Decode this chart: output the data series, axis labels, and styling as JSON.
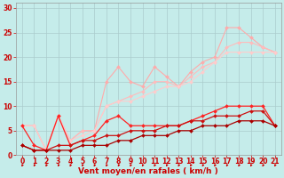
{
  "background_color": "#c5ecea",
  "grid_color": "#aacccc",
  "xlabel": "Vent moyen/en rafales ( km/h )",
  "xlim": [
    -0.5,
    21.5
  ],
  "ylim": [
    0,
    31
  ],
  "xticks": [
    0,
    1,
    2,
    3,
    4,
    5,
    6,
    7,
    8,
    9,
    10,
    11,
    12,
    13,
    14,
    15,
    16,
    17,
    18,
    19,
    20,
    21
  ],
  "yticks": [
    0,
    5,
    10,
    15,
    20,
    25,
    30
  ],
  "series": [
    {
      "x": [
        0,
        1,
        2,
        3,
        4,
        5,
        6,
        7,
        8,
        9,
        10,
        11,
        12,
        13,
        14,
        15,
        16,
        17,
        18,
        19,
        20,
        21
      ],
      "y": [
        6,
        6,
        1,
        8,
        3,
        5,
        5,
        15,
        18,
        15,
        14,
        18,
        16,
        14,
        17,
        19,
        20,
        26,
        26,
        24,
        22,
        21
      ],
      "color": "#ffaaaa",
      "linewidth": 0.8,
      "markersize": 2.0
    },
    {
      "x": [
        0,
        1,
        2,
        3,
        4,
        5,
        6,
        7,
        8,
        9,
        10,
        11,
        12,
        13,
        14,
        15,
        16,
        17,
        18,
        19,
        20,
        21
      ],
      "y": [
        6,
        6,
        1,
        8,
        3,
        5,
        5,
        10,
        11,
        12,
        13,
        15,
        15,
        14,
        16,
        18,
        19,
        22,
        23,
        23,
        22,
        21
      ],
      "color": "#ffbbbb",
      "linewidth": 0.8,
      "markersize": 2.0
    },
    {
      "x": [
        0,
        1,
        2,
        3,
        4,
        5,
        6,
        7,
        8,
        9,
        10,
        11,
        12,
        13,
        14,
        15,
        16,
        17,
        18,
        19,
        20,
        21
      ],
      "y": [
        6,
        6,
        1,
        8,
        3,
        4,
        5,
        10,
        11,
        11,
        12,
        13,
        14,
        14,
        15,
        17,
        19,
        21,
        21,
        21,
        21,
        21
      ],
      "color": "#ffcccc",
      "linewidth": 0.8,
      "markersize": 2.0
    },
    {
      "x": [
        0,
        1,
        2,
        3,
        4,
        5,
        6,
        7,
        8,
        9,
        10,
        11,
        12,
        13,
        14,
        15,
        16,
        17,
        18,
        19,
        20,
        21
      ],
      "y": [
        6,
        2,
        1,
        8,
        2,
        3,
        4,
        7,
        8,
        6,
        6,
        6,
        6,
        6,
        7,
        8,
        9,
        10,
        10,
        10,
        10,
        6
      ],
      "color": "#ff2222",
      "linewidth": 0.9,
      "markersize": 2.0
    },
    {
      "x": [
        0,
        1,
        2,
        3,
        4,
        5,
        6,
        7,
        8,
        9,
        10,
        11,
        12,
        13,
        14,
        15,
        16,
        17,
        18,
        19,
        20,
        21
      ],
      "y": [
        2,
        1,
        1,
        2,
        2,
        3,
        3,
        4,
        4,
        5,
        5,
        5,
        6,
        6,
        7,
        7,
        8,
        8,
        8,
        9,
        9,
        6
      ],
      "color": "#cc1111",
      "linewidth": 0.9,
      "markersize": 2.0
    },
    {
      "x": [
        0,
        1,
        2,
        3,
        4,
        5,
        6,
        7,
        8,
        9,
        10,
        11,
        12,
        13,
        14,
        15,
        16,
        17,
        18,
        19,
        20,
        21
      ],
      "y": [
        2,
        1,
        1,
        1,
        1,
        2,
        2,
        2,
        3,
        3,
        4,
        4,
        4,
        5,
        5,
        6,
        6,
        6,
        7,
        7,
        7,
        6
      ],
      "color": "#aa0000",
      "linewidth": 0.9,
      "markersize": 2.0
    }
  ],
  "arrow_color": "#cc0000",
  "label_color": "#cc0000",
  "tick_color": "#cc0000",
  "label_fontsize": 6.5,
  "tick_fontsize": 5.5
}
